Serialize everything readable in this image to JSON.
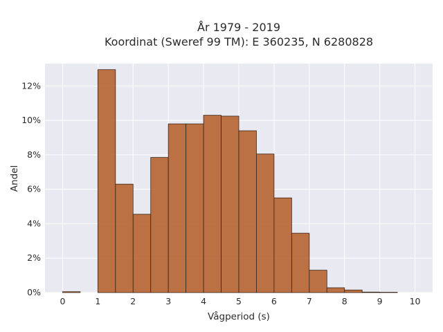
{
  "chart_data": {
    "type": "bar",
    "title_line1": "År 1979 - 2019",
    "title_line2": "Koordinat (Sweref 99 TM): E 360235, N 6280828",
    "xlabel": "Vågperiod (s)",
    "ylabel": "Andel",
    "xlim": [
      -0.5,
      10.5
    ],
    "ylim": [
      0,
      13.3
    ],
    "x_ticks": [
      0,
      1,
      2,
      3,
      4,
      5,
      6,
      7,
      8,
      9,
      10
    ],
    "x_tick_labels": [
      "0",
      "1",
      "2",
      "3",
      "4",
      "5",
      "6",
      "7",
      "8",
      "9",
      "10"
    ],
    "y_ticks": [
      0,
      2,
      4,
      6,
      8,
      10,
      12
    ],
    "y_tick_labels": [
      "0%",
      "2%",
      "4%",
      "6%",
      "8%",
      "10%",
      "12%"
    ],
    "bin_width": 0.5,
    "bins": [
      {
        "start": 0.0,
        "value": 0.05
      },
      {
        "start": 0.5,
        "value": 0.0
      },
      {
        "start": 1.0,
        "value": 12.95
      },
      {
        "start": 1.5,
        "value": 6.3
      },
      {
        "start": 2.0,
        "value": 4.55
      },
      {
        "start": 2.5,
        "value": 7.85
      },
      {
        "start": 3.0,
        "value": 9.8
      },
      {
        "start": 3.5,
        "value": 9.8
      },
      {
        "start": 4.0,
        "value": 10.3
      },
      {
        "start": 4.5,
        "value": 10.25
      },
      {
        "start": 5.0,
        "value": 9.4
      },
      {
        "start": 5.5,
        "value": 8.05
      },
      {
        "start": 6.0,
        "value": 5.5
      },
      {
        "start": 6.5,
        "value": 3.45
      },
      {
        "start": 7.0,
        "value": 1.3
      },
      {
        "start": 7.5,
        "value": 0.28
      },
      {
        "start": 8.0,
        "value": 0.15
      },
      {
        "start": 8.5,
        "value": 0.03
      },
      {
        "start": 9.0,
        "value": 0.02
      }
    ],
    "bar_color": "#b5602c",
    "bar_edge_color": "#3a2418",
    "plot_background": "#e9e9f1",
    "grid": true,
    "grid_color": "#ffffff"
  }
}
